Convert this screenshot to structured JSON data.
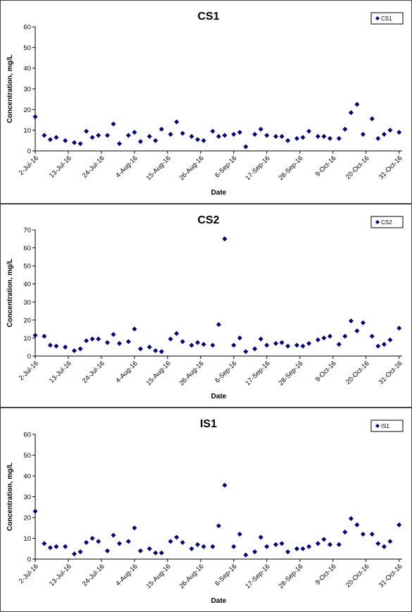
{
  "chart_data": [
    {
      "type": "scatter",
      "title": "CS1",
      "xlabel": "Date",
      "ylabel": "Concentration, mg/L",
      "ylim": [
        0,
        60
      ],
      "yticks": [
        0,
        10,
        20,
        30,
        40,
        50,
        60
      ],
      "xlim": [
        "2016-07-02",
        "2016-11-01"
      ],
      "xticks": [
        "2-Jul-16",
        "13-Jul-16",
        "24-Jul-16",
        "4-Aug-16",
        "15-Aug-16",
        "26-Aug-16",
        "6-Sep-16",
        "17-Sep-16",
        "28-Sep-16",
        "9-Oct-16",
        "20-Oct-16",
        "31-Oct-16"
      ],
      "grid": false,
      "legend": "top-right",
      "color": "#00008B",
      "series": [
        {
          "name": "CS1",
          "x": [
            "2016-07-02",
            "2016-07-05",
            "2016-07-07",
            "2016-07-09",
            "2016-07-12",
            "2016-07-15",
            "2016-07-17",
            "2016-07-19",
            "2016-07-21",
            "2016-07-23",
            "2016-07-26",
            "2016-07-28",
            "2016-07-30",
            "2016-08-02",
            "2016-08-04",
            "2016-08-06",
            "2016-08-09",
            "2016-08-11",
            "2016-08-13",
            "2016-08-16",
            "2016-08-18",
            "2016-08-20",
            "2016-08-23",
            "2016-08-25",
            "2016-08-27",
            "2016-08-30",
            "2016-09-01",
            "2016-09-03",
            "2016-09-06",
            "2016-09-08",
            "2016-09-10",
            "2016-09-13",
            "2016-09-15",
            "2016-09-17",
            "2016-09-20",
            "2016-09-22",
            "2016-09-24",
            "2016-09-27",
            "2016-09-29",
            "2016-10-01",
            "2016-10-04",
            "2016-10-06",
            "2016-10-08",
            "2016-10-11",
            "2016-10-13",
            "2016-10-15",
            "2016-10-17",
            "2016-10-19",
            "2016-10-22",
            "2016-10-24",
            "2016-10-26",
            "2016-10-28",
            "2016-10-31"
          ],
          "y": [
            16.5,
            7.5,
            5.5,
            6.5,
            5,
            4,
            3.5,
            9.5,
            6.5,
            7.5,
            7.5,
            13,
            3.5,
            7.5,
            9,
            4.5,
            7,
            5,
            10.5,
            8,
            14,
            8.5,
            7,
            5.5,
            5,
            9.5,
            7,
            7.5,
            8,
            9,
            2,
            8,
            10.5,
            7.5,
            7,
            7,
            5,
            6,
            6.5,
            9.5,
            7,
            7,
            6,
            6,
            10.5,
            18.5,
            22.5,
            8,
            15.5,
            6,
            8,
            10,
            9
          ]
        }
      ]
    },
    {
      "type": "scatter",
      "title": "CS2",
      "xlabel": "Date",
      "ylabel": "Concentration, mg/L",
      "ylim": [
        0,
        70
      ],
      "yticks": [
        0,
        10,
        20,
        30,
        40,
        50,
        60,
        70
      ],
      "xlim": [
        "2016-07-02",
        "2016-11-01"
      ],
      "xticks": [
        "2-Jul-16",
        "13-Jul-16",
        "24-Jul-16",
        "4-Aug-16",
        "15-Aug-16",
        "26-Aug-16",
        "6-Sep-16",
        "17-Sep-16",
        "28-Sep-16",
        "9-Oct-16",
        "20-Oct-16",
        "31-Oct-16"
      ],
      "grid": false,
      "legend": "top-right",
      "color": "#00008B",
      "series": [
        {
          "name": "CS2",
          "x": [
            "2016-07-02",
            "2016-07-05",
            "2016-07-07",
            "2016-07-09",
            "2016-07-12",
            "2016-07-15",
            "2016-07-17",
            "2016-07-19",
            "2016-07-21",
            "2016-07-23",
            "2016-07-26",
            "2016-07-28",
            "2016-07-30",
            "2016-08-02",
            "2016-08-04",
            "2016-08-06",
            "2016-08-09",
            "2016-08-11",
            "2016-08-13",
            "2016-08-16",
            "2016-08-18",
            "2016-08-20",
            "2016-08-23",
            "2016-08-25",
            "2016-08-27",
            "2016-08-30",
            "2016-09-01",
            "2016-09-03",
            "2016-09-06",
            "2016-09-08",
            "2016-09-10",
            "2016-09-13",
            "2016-09-15",
            "2016-09-17",
            "2016-09-20",
            "2016-09-22",
            "2016-09-24",
            "2016-09-27",
            "2016-09-29",
            "2016-10-01",
            "2016-10-04",
            "2016-10-06",
            "2016-10-08",
            "2016-10-11",
            "2016-10-13",
            "2016-10-15",
            "2016-10-17",
            "2016-10-19",
            "2016-10-22",
            "2016-10-24",
            "2016-10-26",
            "2016-10-28",
            "2016-10-31"
          ],
          "y": [
            11.5,
            11,
            6,
            5.5,
            5,
            3,
            4,
            8.5,
            9.5,
            9.5,
            7.5,
            12,
            7,
            8,
            15,
            4,
            5,
            3,
            2.5,
            9.5,
            12.5,
            8,
            6,
            7.5,
            6.5,
            6,
            17.5,
            65,
            6,
            10,
            2.5,
            4,
            9.5,
            6,
            7,
            7.5,
            5.5,
            6,
            5.5,
            7,
            9,
            10,
            11,
            6.5,
            11,
            19.5,
            14,
            18.5,
            11,
            5.5,
            6.5,
            9,
            15.5
          ]
        }
      ]
    },
    {
      "type": "scatter",
      "title": "IS1",
      "xlabel": "Date",
      "ylabel": "Concentration, mg/L",
      "ylim": [
        0,
        60
      ],
      "yticks": [
        0,
        10,
        20,
        30,
        40,
        50,
        60
      ],
      "xlim": [
        "2016-07-02",
        "2016-11-01"
      ],
      "xticks": [
        "2-Jul-16",
        "13-Jul-16",
        "24-Jul-16",
        "4-Aug-16",
        "15-Aug-16",
        "26-Aug-16",
        "6-Sep-16",
        "17-Sep-16",
        "28-Sep-16",
        "9-Oct-16",
        "20-Oct-16",
        "31-Oct-16"
      ],
      "grid": false,
      "legend": "top-right",
      "color": "#00008B",
      "series": [
        {
          "name": "IS1",
          "x": [
            "2016-07-02",
            "2016-07-05",
            "2016-07-07",
            "2016-07-09",
            "2016-07-12",
            "2016-07-15",
            "2016-07-17",
            "2016-07-19",
            "2016-07-21",
            "2016-07-23",
            "2016-07-26",
            "2016-07-28",
            "2016-07-30",
            "2016-08-02",
            "2016-08-04",
            "2016-08-06",
            "2016-08-09",
            "2016-08-11",
            "2016-08-13",
            "2016-08-16",
            "2016-08-18",
            "2016-08-20",
            "2016-08-23",
            "2016-08-25",
            "2016-08-27",
            "2016-08-30",
            "2016-09-01",
            "2016-09-03",
            "2016-09-06",
            "2016-09-08",
            "2016-09-10",
            "2016-09-13",
            "2016-09-15",
            "2016-09-17",
            "2016-09-20",
            "2016-09-22",
            "2016-09-24",
            "2016-09-27",
            "2016-09-29",
            "2016-10-01",
            "2016-10-04",
            "2016-10-06",
            "2016-10-08",
            "2016-10-11",
            "2016-10-13",
            "2016-10-15",
            "2016-10-17",
            "2016-10-19",
            "2016-10-22",
            "2016-10-24",
            "2016-10-26",
            "2016-10-28",
            "2016-10-31"
          ],
          "y": [
            23,
            7.5,
            5.5,
            6,
            6,
            2.5,
            3.5,
            8,
            10,
            8.5,
            4,
            11.5,
            7.5,
            8.5,
            15,
            4,
            5,
            3,
            3,
            8.5,
            10.5,
            8,
            5,
            7,
            6,
            6,
            16,
            35.5,
            6,
            12,
            2,
            3.5,
            10.5,
            6,
            7,
            7.5,
            3.5,
            5,
            5,
            6,
            7.5,
            9.5,
            7,
            7,
            13,
            19.5,
            16.5,
            12,
            12,
            7.5,
            6,
            8.5,
            16.5
          ]
        }
      ]
    }
  ]
}
